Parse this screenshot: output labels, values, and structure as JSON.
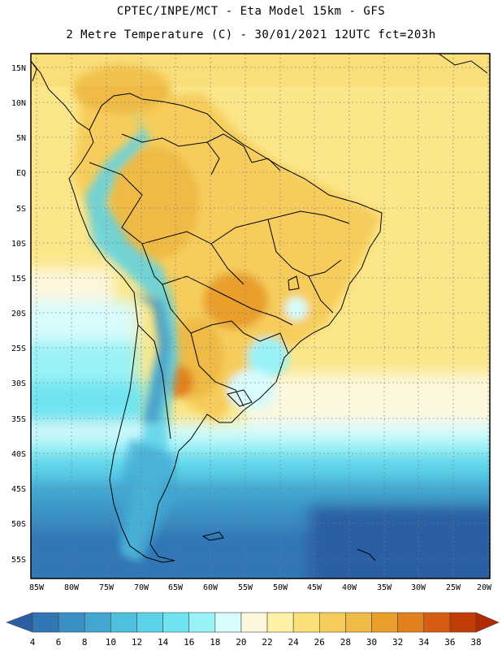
{
  "header": {
    "title_line1": "CPTEC/INPE/MCT -  Eta Model 15km - GFS",
    "title_line2": "2 Metre Temperature (C) - 30/01/2021 12UTC fct=203h"
  },
  "map": {
    "lat_ticks": [
      "15N",
      "10N",
      "5N",
      "EQ",
      "5S",
      "10S",
      "15S",
      "20S",
      "25S",
      "30S",
      "35S",
      "40S",
      "45S",
      "50S",
      "55S"
    ],
    "lon_ticks": [
      "85W",
      "80W",
      "75W",
      "70W",
      "65W",
      "60W",
      "55W",
      "50W",
      "45W",
      "40W",
      "35W",
      "30W",
      "25W",
      "20W"
    ],
    "gridlines": "dotted"
  },
  "colorbar": {
    "labels": [
      "4",
      "6",
      "8",
      "10",
      "12",
      "14",
      "16",
      "18",
      "20",
      "22",
      "24",
      "26",
      "28",
      "30",
      "32",
      "34",
      "36",
      "38"
    ],
    "colors": [
      "#2a5fa3",
      "#3177b5",
      "#3a8fc4",
      "#43a6d1",
      "#4ec0de",
      "#5cd3e8",
      "#6ee4f0",
      "#9af2f7",
      "#d8fbfc",
      "#fdf7dd",
      "#fdf1a6",
      "#fbe07a",
      "#f6cd5c",
      "#efba45",
      "#e99f2a",
      "#e2801e",
      "#d65d12",
      "#c23c08",
      "#b02a04"
    ]
  }
}
